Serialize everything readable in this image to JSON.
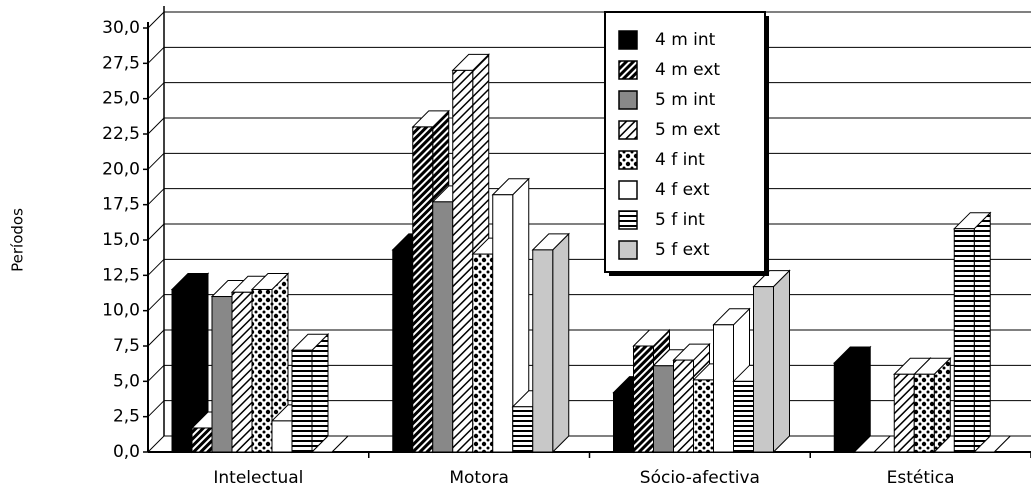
{
  "chart_data": {
    "type": "bar3d",
    "y_label": "Períodos",
    "categories": [
      "Intelectual",
      "Motora",
      "Sócio-afectiva",
      "Estética"
    ],
    "series": [
      {
        "name": "4 m int",
        "color": "#000000",
        "pattern": "solid",
        "values": [
          11.5,
          14.3,
          4.2,
          6.3
        ]
      },
      {
        "name": "4 m ext",
        "color": "#000000",
        "pattern": "diag-dense",
        "values": [
          1.7,
          23,
          7.5,
          0
        ]
      },
      {
        "name": "5 m int",
        "color": "#888888",
        "pattern": "solid",
        "values": [
          11,
          17.7,
          6.1,
          0
        ]
      },
      {
        "name": "5 m ext",
        "color": "#000000",
        "pattern": "diag-light",
        "values": [
          11.3,
          27,
          6.5,
          5.5
        ]
      },
      {
        "name": "4 f int",
        "color": "#000000",
        "pattern": "check",
        "values": [
          11.5,
          14,
          5.1,
          5.5
        ]
      },
      {
        "name": "4 f ext",
        "color": "#ffffff",
        "pattern": "solid",
        "values": [
          2.2,
          18.2,
          9,
          0
        ]
      },
      {
        "name": "5 f int",
        "color": "#000000",
        "pattern": "horiz",
        "values": [
          7.2,
          3.2,
          5,
          15.8
        ]
      },
      {
        "name": "5 f ext",
        "color": "#c8c8c8",
        "pattern": "solid",
        "values": [
          0,
          14.3,
          11.7,
          0
        ]
      }
    ],
    "ylim": [
      0,
      30
    ],
    "yticks": [
      {
        "value": 0,
        "label": "0,0"
      },
      {
        "value": 2.5,
        "label": "2,5"
      },
      {
        "value": 5,
        "label": "5,0"
      },
      {
        "value": 7.5,
        "label": "7,5"
      },
      {
        "value": 10,
        "label": "10,0"
      },
      {
        "value": 12.5,
        "label": "12,5"
      },
      {
        "value": 15,
        "label": "15,0"
      },
      {
        "value": 17.5,
        "label": "17,5"
      },
      {
        "value": 20,
        "label": "20,0"
      },
      {
        "value": 22.5,
        "label": "22,5"
      },
      {
        "value": 25,
        "label": "25,0"
      },
      {
        "value": 27.5,
        "label": "27,5"
      },
      {
        "value": 30,
        "label": "30,0"
      }
    ],
    "grid": true,
    "legend": "top-right"
  }
}
